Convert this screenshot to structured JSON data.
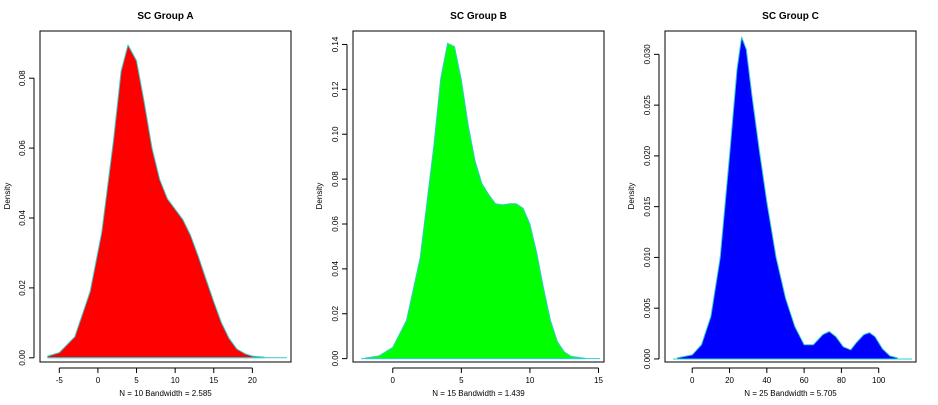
{
  "chart_data": [
    {
      "type": "area",
      "title": "SC Group A",
      "ylabel": "Density",
      "xlabel": "N = 10   Bandwidth = 2.585",
      "fill": "#ff0000",
      "stroke": "#33cccc",
      "xlim": [
        -7.5,
        25
      ],
      "ylim": [
        -0.0012,
        0.0935
      ],
      "xticks": [
        -5,
        0,
        5,
        10,
        15,
        20
      ],
      "yticks": [
        0.0,
        0.02,
        0.04,
        0.06,
        0.08
      ],
      "ytick_labels": [
        "0.00",
        "0.02",
        "0.04",
        "0.06",
        "0.08"
      ],
      "x": [
        -6.5,
        -5,
        -3,
        -1,
        0.5,
        2,
        3,
        3.9,
        5,
        6,
        7,
        8,
        9,
        10,
        11,
        12,
        13,
        14,
        15,
        16,
        17,
        18,
        19,
        20,
        21.5
      ],
      "y": [
        0.0005,
        0.0015,
        0.006,
        0.019,
        0.036,
        0.062,
        0.082,
        0.0895,
        0.085,
        0.073,
        0.06,
        0.051,
        0.0455,
        0.0425,
        0.0395,
        0.035,
        0.029,
        0.0225,
        0.016,
        0.01,
        0.0055,
        0.0025,
        0.0012,
        0.0005,
        0.0002
      ]
    },
    {
      "type": "area",
      "title": "SC Group B",
      "ylabel": "Density",
      "xlabel": "N = 15   Bandwidth = 1.439",
      "fill": "#00ff00",
      "stroke": "#33cccc",
      "xlim": [
        -2.9,
        15.4
      ],
      "ylim": [
        -0.0015,
        0.146
      ],
      "xticks": [
        0,
        5,
        10,
        15
      ],
      "yticks": [
        0.0,
        0.02,
        0.04,
        0.06,
        0.08,
        0.1,
        0.12,
        0.14
      ],
      "ytick_labels": [
        "0.00",
        "0.02",
        "0.04",
        "0.06",
        "0.08",
        "0.10",
        "0.12",
        "0.14"
      ],
      "x": [
        -2,
        -1,
        0,
        1,
        2,
        3,
        3.5,
        4,
        4.5,
        5,
        5.5,
        6,
        6.5,
        7,
        7.5,
        8,
        8.5,
        9,
        9.5,
        10,
        10.5,
        11,
        11.5,
        12,
        12.5,
        13,
        14
      ],
      "y": [
        0.0003,
        0.0012,
        0.005,
        0.017,
        0.045,
        0.095,
        0.125,
        0.1405,
        0.139,
        0.124,
        0.104,
        0.088,
        0.078,
        0.073,
        0.069,
        0.0685,
        0.069,
        0.069,
        0.067,
        0.06,
        0.047,
        0.031,
        0.017,
        0.0075,
        0.003,
        0.001,
        0.0002
      ]
    },
    {
      "type": "area",
      "title": "SC Group C",
      "ylabel": "Density",
      "xlabel": "N = 25   Bandwidth = 5.705",
      "fill": "#0000ff",
      "stroke": "#33cccc",
      "xlim": [
        -14.6,
        120
      ],
      "ylim": [
        -0.0003,
        0.0323
      ],
      "xticks": [
        0,
        20,
        40,
        60,
        80,
        100
      ],
      "yticks": [
        0.0,
        0.005,
        0.01,
        0.015,
        0.02,
        0.025,
        0.03
      ],
      "ytick_labels": [
        "0.000",
        "0.005",
        "0.010",
        "0.015",
        "0.020",
        "0.025",
        "0.030"
      ],
      "x": [
        -8,
        0,
        5,
        10,
        15,
        20,
        24,
        26.5,
        29,
        32,
        36,
        40,
        45,
        50,
        55,
        60,
        65,
        70,
        73.5,
        77,
        81,
        85,
        88,
        92,
        95,
        98,
        102,
        106,
        110
      ],
      "y": [
        0.0001,
        0.0004,
        0.0014,
        0.0042,
        0.01,
        0.02,
        0.0285,
        0.0317,
        0.0305,
        0.026,
        0.0205,
        0.0155,
        0.01,
        0.006,
        0.0032,
        0.0014,
        0.0014,
        0.0024,
        0.0027,
        0.0022,
        0.0012,
        0.0009,
        0.0016,
        0.0024,
        0.0026,
        0.0022,
        0.001,
        0.0003,
        0.0001
      ]
    }
  ]
}
